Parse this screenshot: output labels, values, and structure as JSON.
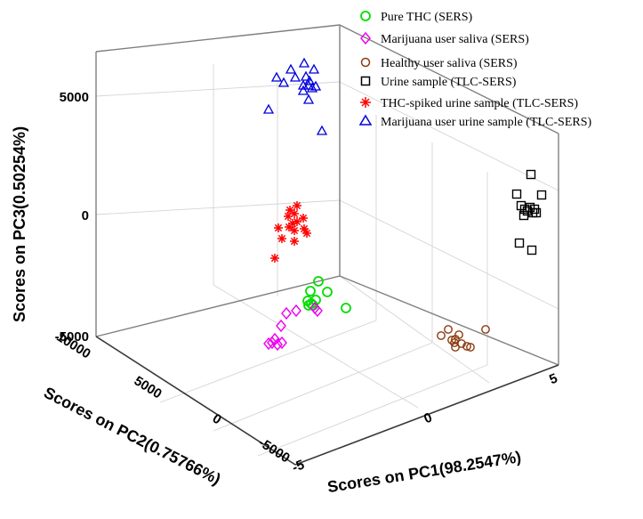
{
  "chart_data": {
    "type": "scatter3d",
    "axes": {
      "x": {
        "label": "Scores on PC1(98.2547%)",
        "ticks": [
          "-5",
          "0",
          "5"
        ]
      },
      "y": {
        "label": "Scores on PC2(0.75766%)",
        "ticks": [
          "-5000",
          "0",
          "5000",
          "10000"
        ]
      },
      "z": {
        "label": "Scores on PC3(0.50254%)",
        "ticks": [
          "-5000",
          "0",
          "5000"
        ]
      }
    },
    "legend_position": "top-right",
    "series": [
      {
        "name": "Pure THC (SERS)",
        "marker": "circle",
        "color": "#00dd00"
      },
      {
        "name": "Marijuana user saliva (SERS)",
        "marker": "diamond",
        "color": "#ee00ee"
      },
      {
        "name": "Healthy user saliva (SERS)",
        "marker": "circle",
        "color": "#8b3a0f"
      },
      {
        "name": "Urine sample (TLC-SERS)",
        "marker": "square",
        "color": "#000000"
      },
      {
        "name": "THC-spiked urine sample (TLC-SERS)",
        "marker": "asterisk",
        "color": "#ff0000"
      },
      {
        "name": "Marijuana user urine sample (TLC-SERS)",
        "marker": "triangle",
        "color": "#0000dd"
      }
    ]
  }
}
